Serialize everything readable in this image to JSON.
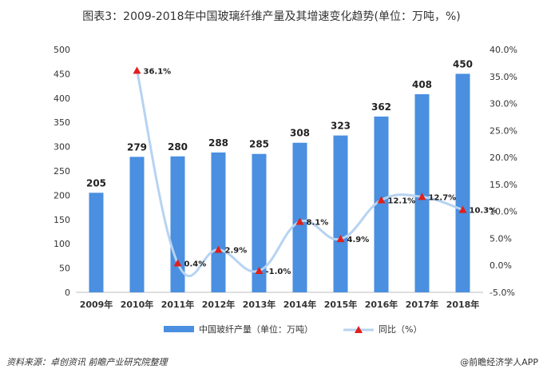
{
  "title": "图表3：2009-2018年中国玻璃纤维产量及其增速变化趋势(单位：万吨，%)",
  "source_text": "资料来源：卓创资讯 前瞻产业研究院整理",
  "brand_text": "@前瞻经济学人APP",
  "colors": {
    "bar": "#4a8fe0",
    "line": "#b6d3f2",
    "marker": "#e0201b"
  },
  "chart_data": {
    "type": "bar+line",
    "categories": [
      "2009年",
      "2010年",
      "2011年",
      "2012年",
      "2013年",
      "2014年",
      "2015年",
      "2016年",
      "2017年",
      "2018年"
    ],
    "series": [
      {
        "name": "中国玻纤产量（单位：万吨）",
        "type": "bar",
        "axis": "left",
        "values": [
          205,
          279,
          280,
          288,
          285,
          308,
          323,
          362,
          408,
          450
        ],
        "labels": [
          "205",
          "279",
          "280",
          "288",
          "285",
          "308",
          "323",
          "362",
          "408",
          "450"
        ]
      },
      {
        "name": "同比（%）",
        "type": "line",
        "axis": "right",
        "values": [
          null,
          36.1,
          0.4,
          2.9,
          -1.0,
          8.1,
          4.9,
          12.1,
          12.7,
          10.3
        ],
        "labels": [
          "",
          "36.1%",
          "0.4%",
          "2.9%",
          "-1.0%",
          "8.1%",
          "4.9%",
          "12.1%",
          "12.7%",
          "10.3%"
        ]
      }
    ],
    "left_axis": {
      "min": 0,
      "max": 500,
      "ticks": [
        "0",
        "50",
        "100",
        "150",
        "200",
        "250",
        "300",
        "350",
        "400",
        "450",
        "500"
      ]
    },
    "right_axis": {
      "min": -5,
      "max": 40,
      "ticks": [
        "-5.0%",
        "0.0%",
        "5.0%",
        "10.0%",
        "15.0%",
        "20.0%",
        "25.0%",
        "30.0%",
        "35.0%",
        "40.0%"
      ]
    },
    "legend": [
      "中国玻纤产量（单位：万吨）",
      "同比（%）"
    ],
    "legend_position": "bottom",
    "grid": false
  }
}
